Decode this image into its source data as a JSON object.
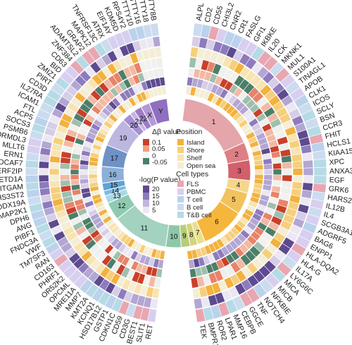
{
  "figure": {
    "left_genes": [
      "TTTY8B",
      "TTTY18",
      "TTTY16",
      "TTTY10",
      "RPS4Y2",
      "KDM5D",
      "EIF1AY",
      "ATRX",
      "TNFRSF13C",
      "MAPK12",
      "GRAP2",
      "ADAMTSL2",
      "ZNF384",
      "CD63",
      "BID",
      "ZMIZ1",
      "PIRT",
      "CD3D",
      "IL27RA",
      "ICAM1",
      "FTL",
      "ACP5",
      "SOCS3",
      "PSMB6",
      "ORMDL3",
      "MLLT6",
      "ERN1",
      "DCAF7",
      "TERF2IP",
      "SETD1A",
      "ITGAM",
      "HS3ST2",
      "DDX19A",
      "MAP2K1",
      "DPH6",
      "ANG",
      "PIBF1",
      "FNDC3A",
      "VWF",
      "TM7SF3",
      "RAN",
      "CD163",
      "PHRF1",
      "OR52K2",
      "OPCML",
      "MRE11A",
      "MMP7",
      "KMT2A",
      "KCNQ1",
      "HSD17B12",
      "GSTP1",
      "CDKN1C",
      "CD59",
      "CD3G",
      "BEST1",
      "SLIT1",
      "RET"
    ],
    "right_genes": [
      "ALPL",
      "CD2",
      "CD55",
      "CHI3L2",
      "CNR2",
      "CR1",
      "FASLG",
      "GFI1",
      "IKBKE",
      "IL20",
      "LCK",
      "MKNK1",
      "MUL1",
      "S100A1",
      "TINAGL1",
      "APOB",
      "CLK1",
      "ICOS",
      "SCLY",
      "BSN",
      "CCR3",
      "FHIT",
      "HCLS1",
      "KIAA1524",
      "XPC",
      "ANXA3",
      "EGF",
      "GRK6",
      "HARS2",
      "IL12B",
      "IL4",
      "SCGB3A1",
      "ADGRF5",
      "BAG6",
      "ENPP1",
      "HLA-DQA2",
      "HLA-G",
      "IL17A",
      "LY6G6C",
      "MICA",
      "MICB",
      "NFKBIE",
      "NOTCH4",
      "TNF",
      "GGCE",
      "CEBPB",
      "MMP16",
      "LPAR1",
      "ROR2",
      "BMPR1A",
      "TEK"
    ],
    "chromosomes": [
      {
        "label": "1",
        "color": "#e4a6aa"
      },
      {
        "label": "2",
        "color": "#dd7f86"
      },
      {
        "label": "3",
        "color": "#d25f6b"
      },
      {
        "label": "4",
        "color": "#f5d68a"
      },
      {
        "label": "5",
        "color": "#f2c25e"
      },
      {
        "label": "6",
        "color": "#f5b63c"
      },
      {
        "label": "7",
        "color": "#e9df8b"
      },
      {
        "label": "8",
        "color": "#d4d47e"
      },
      {
        "label": "9",
        "color": "#b7cd78"
      },
      {
        "label": "10",
        "color": "#8dc7a9"
      },
      {
        "label": "11",
        "color": "#a3d2c0"
      },
      {
        "label": "12",
        "color": "#8fcab0"
      },
      {
        "label": "13",
        "color": "#a9d8e4"
      },
      {
        "label": "14",
        "color": "#7bbbe1"
      },
      {
        "label": "15",
        "color": "#5fa2d7"
      },
      {
        "label": "16",
        "color": "#8cb0d8"
      },
      {
        "label": "17",
        "color": "#6f92c6"
      },
      {
        "label": "19",
        "color": "#bdb6e0"
      },
      {
        "label": "20",
        "color": "#a48fd2"
      },
      {
        "label": "21",
        "color": "#c7b3e5"
      },
      {
        "label": "22",
        "color": "#9d7cc6"
      },
      {
        "label": "X",
        "color": "#b599d5"
      },
      {
        "label": "Y",
        "color": "#8f6fc0"
      }
    ],
    "legend": {
      "delta_beta": {
        "title": "Δβ value",
        "ticks": [
          "0.1",
          "0.05",
          "0",
          "-0.05"
        ],
        "colors": [
          "#c9402a",
          "#f2a07f",
          "#f4f4f4",
          "#4c7f6a"
        ]
      },
      "position": {
        "title": "Position",
        "items": [
          {
            "label": "Island",
            "color": "#f3b13e"
          },
          {
            "label": "Shore",
            "color": "#f6cf7c"
          },
          {
            "label": "Shelf",
            "color": "#f8e4b3"
          },
          {
            "label": "Open sea",
            "color": "#f4eed7"
          }
        ]
      },
      "pvalue": {
        "title": "-log(P value)",
        "ticks": [
          "20",
          "15",
          "10",
          "5"
        ],
        "colors": [
          "#5e4a8f",
          "#8e7bbd",
          "#c2b6da",
          "#ece8f3"
        ]
      },
      "cell_types": {
        "title": "Cell types",
        "items": [
          {
            "label": "FLS",
            "color": "#e8a6b1"
          },
          {
            "label": "PBMC",
            "color": "#d8cff0"
          },
          {
            "label": "T cell",
            "color": "#bcd2ec"
          },
          {
            "label": "B cell",
            "color": "#ccdcef"
          },
          {
            "label": "T&B cell",
            "color": "#b6dbe6"
          }
        ]
      }
    },
    "colors": {
      "celltype_ring": "#cfd9ee",
      "pvalue_ring": "#ece8f3",
      "position_ring": "#f8e4b3",
      "delta_ring": "#f2f2f2"
    }
  }
}
